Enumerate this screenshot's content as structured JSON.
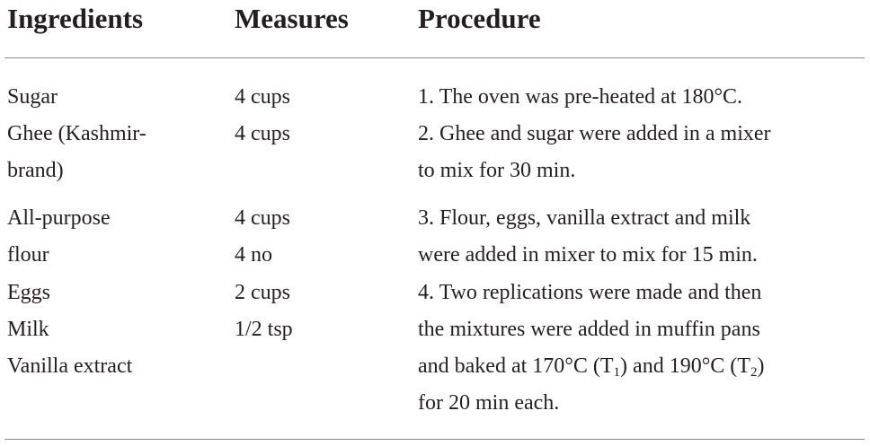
{
  "table": {
    "headers": {
      "ingredients": "Ingredients",
      "measures": "Measures",
      "procedure": "Procedure"
    },
    "ingredients": [
      "Sugar",
      "Ghee (Kashmir-",
      "brand)",
      "All-purpose",
      "flour",
      "Eggs",
      "Milk",
      "Vanilla extract"
    ],
    "measures": [
      "4 cups",
      "4 cups",
      "4 cups",
      "4 no",
      "2 cups",
      "1/2 tsp"
    ],
    "procedure": {
      "step1": "1. The oven was pre-heated at 180°C.",
      "step2_line1": "2. Ghee and sugar were added in a mixer",
      "step2_line2": "to mix for 30 min.",
      "step3_line1": "3. Flour, eggs, vanilla extract and milk",
      "step3_line2": "were added in mixer to mix for 15 min.",
      "step4_line1": "4. Two replications were made and then",
      "step4_line2": "the mixtures were added in muffin pans",
      "step4_line3_a": "and baked at 170°C (T",
      "step4_line3_sub1": "1",
      "step4_line3_b": ") and 190°C (T",
      "step4_line3_sub2": "2",
      "step4_line3_c": ")",
      "step4_line4": "for 20 min each."
    }
  }
}
